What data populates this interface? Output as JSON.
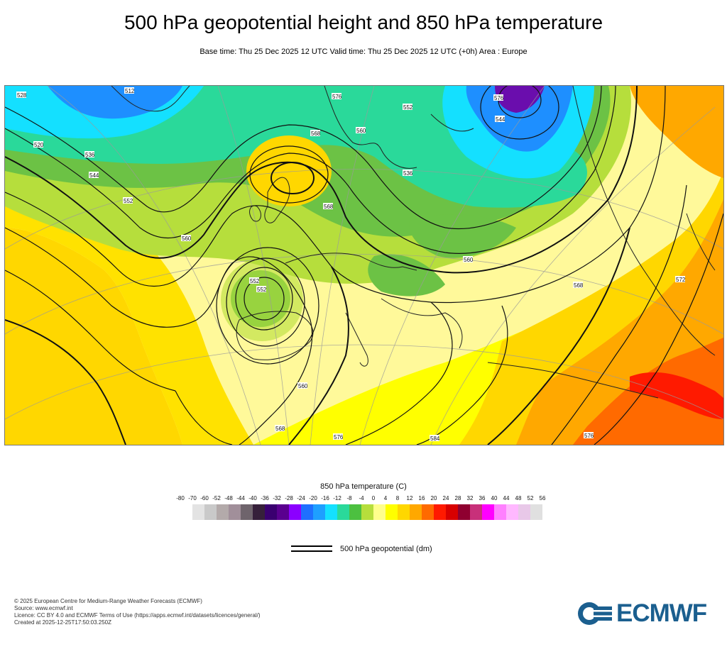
{
  "header": {
    "title": "500 hPa geopotential height and 850 hPa temperature",
    "subtitle": "Base time: Thu 25 Dec 2025 12 UTC Valid time: Thu 25 Dec 2025 12 UTC (+0h) Area : Europe"
  },
  "map": {
    "contour_labels": [
      "528",
      "512",
      "520",
      "536",
      "544",
      "552",
      "560",
      "568",
      "576",
      "560",
      "552",
      "544",
      "536",
      "568",
      "576",
      "560",
      "552",
      "560",
      "568",
      "576",
      "584",
      "576",
      "568",
      "572",
      "552"
    ],
    "colors": {
      "cold_violet": "#6a0dad",
      "blue": "#1e8fff",
      "cyan": "#14e0ff",
      "teal": "#2ad99a",
      "green": "#6cc245",
      "light_green": "#b6de3c",
      "pale_yellow": "#ffff8c",
      "yellow": "#ffff00",
      "gold": "#ffd700",
      "orange": "#ff9f00",
      "dark_orange": "#ff6a00",
      "red": "#ff0000"
    }
  },
  "legend": {
    "temperature_title": "850 hPa temperature (C)",
    "ticks": [
      "-80",
      "-70",
      "-60",
      "-52",
      "-48",
      "-44",
      "-40",
      "-36",
      "-32",
      "-28",
      "-24",
      "-20",
      "-16",
      "-12",
      "-8",
      "-4",
      "0",
      "4",
      "8",
      "12",
      "16",
      "20",
      "24",
      "28",
      "32",
      "36",
      "40",
      "44",
      "48",
      "52",
      "56"
    ],
    "swatches": [
      "#e3e3e3",
      "#c9c9c9",
      "#b3aaaa",
      "#a18f9a",
      "#6f646c",
      "#36203a",
      "#3a0070",
      "#5a008f",
      "#8b00ff",
      "#1e6fff",
      "#1e9fff",
      "#14e0ff",
      "#2ad99a",
      "#4cc040",
      "#b6de3c",
      "#ffff8c",
      "#ffff00",
      "#ffd700",
      "#ffa800",
      "#ff6a00",
      "#ff1a00",
      "#d80000",
      "#8f0030",
      "#c8307a",
      "#ff00ff",
      "#ff80ff",
      "#ffb8ff",
      "#e8c8e8",
      "#e0e0e0"
    ],
    "geopotential_label": "500 hPa geopotential (dm)"
  },
  "footer": {
    "line1": "© 2025 European Centre for Medium-Range Weather Forecasts (ECMWF)",
    "line2": "Source: www.ecmwf.int",
    "line3": "Licence: CC BY 4.0 and ECMWF Terms of Use (https://apps.ecmwf.int/datasets/licences/general/)",
    "line4": "Created at 2025-12-25T17:50:03.250Z"
  },
  "logo": {
    "text": "ECMWF",
    "color": "#1b5f8f"
  }
}
